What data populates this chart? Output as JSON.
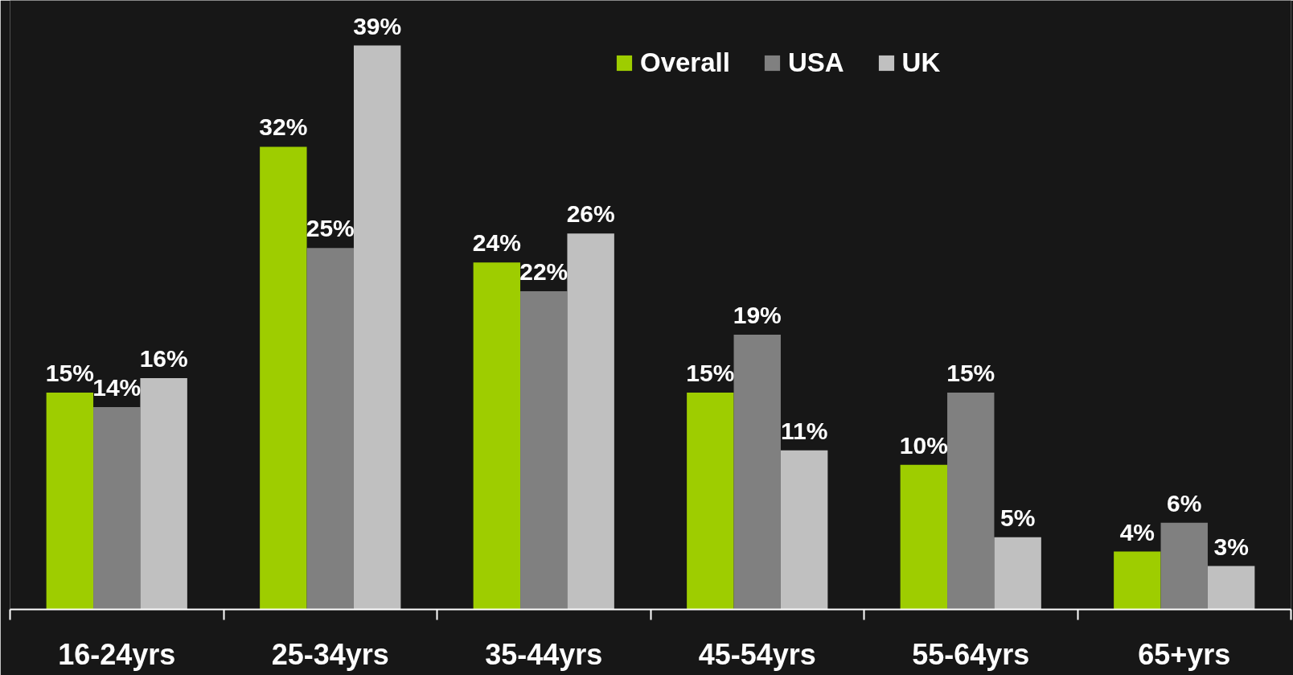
{
  "chart_data": {
    "type": "bar",
    "categories": [
      "16-24yrs",
      "25-34yrs",
      "35-44yrs",
      "45-54yrs",
      "55-64yrs",
      "65+yrs"
    ],
    "series": [
      {
        "name": "Overall",
        "color": "#9ecd00",
        "values": [
          15,
          32,
          24,
          15,
          10,
          4
        ],
        "value_labels": [
          "15%",
          "32%",
          "24%",
          "15%",
          "10%",
          "4%"
        ]
      },
      {
        "name": "USA",
        "color": "#808080",
        "values": [
          14,
          25,
          22,
          19,
          15,
          6
        ],
        "value_labels": [
          "14%",
          "25%",
          "22%",
          "19%",
          "15%",
          "6%"
        ]
      },
      {
        "name": "UK",
        "color": "#c0c0c0",
        "values": [
          16,
          39,
          26,
          11,
          5,
          3
        ],
        "value_labels": [
          "16%",
          "39%",
          "26%",
          "11%",
          "5%",
          "3%"
        ]
      }
    ],
    "legend": "top"
  }
}
